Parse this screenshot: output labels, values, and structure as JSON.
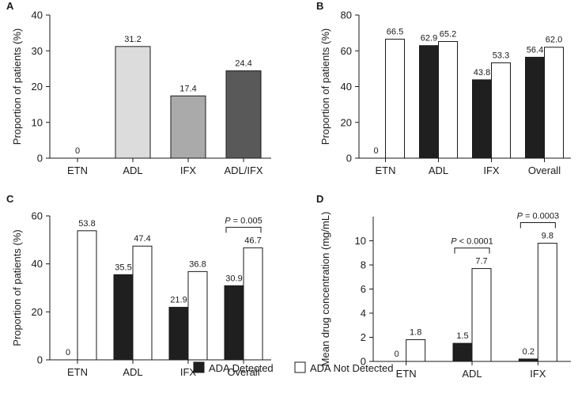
{
  "legend": {
    "items": [
      {
        "label": "ADA Detected",
        "color": "#1f1f1f"
      },
      {
        "label": "ADA Not Detected",
        "color": "#ffffff"
      }
    ]
  },
  "chart_data": [
    {
      "panel": "A",
      "type": "bar",
      "ylabel": "Proportion of patients (%)",
      "ylim": [
        0,
        40
      ],
      "yticks": [
        0,
        10,
        20,
        30,
        40
      ],
      "categories": [
        "ETN",
        "ADL",
        "IFX",
        "ADL/IFX"
      ],
      "series": [
        {
          "name": "",
          "values": [
            0,
            31.2,
            17.4,
            24.4
          ],
          "labels": [
            "0",
            "31.2",
            "17.4",
            "24.4"
          ],
          "colors": [
            "#ffffff",
            "#dcdcdc",
            "#aaaaaa",
            "#595959"
          ]
        }
      ],
      "annotations": []
    },
    {
      "panel": "B",
      "type": "bar",
      "ylabel": "Proportion of patients (%)",
      "ylim": [
        0,
        80
      ],
      "yticks": [
        0,
        20,
        40,
        60,
        80
      ],
      "categories": [
        "ETN",
        "ADL",
        "IFX",
        "Overall"
      ],
      "series": [
        {
          "name": "ADA Detected",
          "values": [
            0,
            62.9,
            43.8,
            56.4
          ],
          "labels": [
            "0",
            "62.9",
            "43.8",
            "56.4"
          ],
          "color": "#1f1f1f"
        },
        {
          "name": "ADA Not Detected",
          "values": [
            66.5,
            65.2,
            53.3,
            62.0
          ],
          "labels": [
            "66.5",
            "65.2",
            "53.3",
            "62.0"
          ],
          "color": "#ffffff"
        }
      ],
      "annotations": []
    },
    {
      "panel": "C",
      "type": "bar",
      "ylabel": "Proportion of patients (%)",
      "ylim": [
        0,
        60
      ],
      "yticks": [
        0,
        20,
        40,
        60
      ],
      "categories": [
        "ETN",
        "ADL",
        "IFX",
        "Overall"
      ],
      "series": [
        {
          "name": "ADA Detected",
          "values": [
            0,
            35.5,
            21.9,
            30.9
          ],
          "labels": [
            "0",
            "35.5",
            "21.9",
            "30.9"
          ],
          "color": "#1f1f1f"
        },
        {
          "name": "ADA Not Detected",
          "values": [
            53.8,
            47.4,
            36.8,
            46.7
          ],
          "labels": [
            "53.8",
            "47.4",
            "36.8",
            "46.7"
          ],
          "color": "#ffffff"
        }
      ],
      "annotations": [
        {
          "category": 3,
          "p_symbol": "P",
          "p_rest": " = 0.005"
        }
      ]
    },
    {
      "panel": "D",
      "type": "bar",
      "ylabel": "Mean drug concentration (mg/mL)",
      "ylim": [
        0,
        12
      ],
      "yticks": [
        0,
        2,
        4,
        6,
        8,
        10
      ],
      "categories": [
        "ETN",
        "ADL",
        "IFX"
      ],
      "series": [
        {
          "name": "ADA Detected",
          "values": [
            0,
            1.5,
            0.2
          ],
          "labels": [
            "0",
            "1.5",
            "0.2"
          ],
          "color": "#1f1f1f"
        },
        {
          "name": "ADA Not Detected",
          "values": [
            1.8,
            7.7,
            9.8
          ],
          "labels": [
            "1.8",
            "7.7",
            "9.8"
          ],
          "color": "#ffffff"
        }
      ],
      "annotations": [
        {
          "category": 1,
          "p_symbol": "P",
          "p_rest": " < 0.0001"
        },
        {
          "category": 2,
          "p_symbol": "P",
          "p_rest": " = 0.0003"
        }
      ]
    }
  ]
}
